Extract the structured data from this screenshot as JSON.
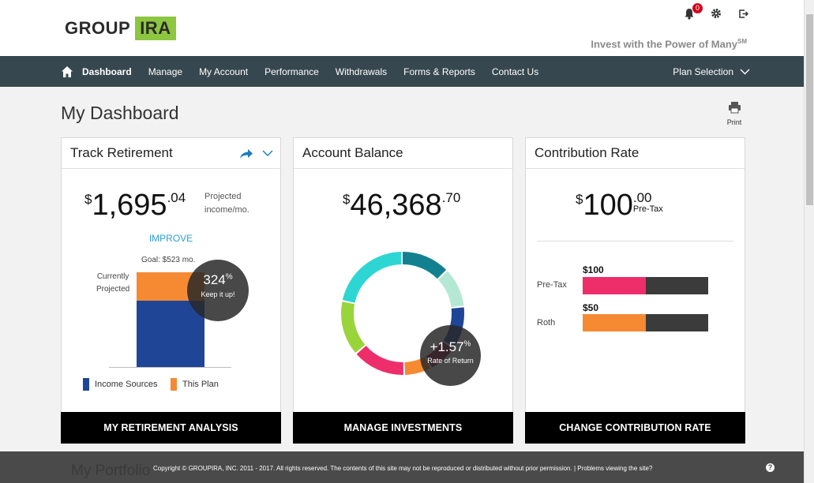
{
  "header": {
    "logo_part1": "GROUP",
    "logo_part2": "IRA",
    "notification_count": "0",
    "tagline": "Invest with the Power of Many",
    "tagline_sup": "SM",
    "icons": [
      "bell-icon",
      "gear-icon",
      "logout-icon"
    ]
  },
  "nav": {
    "items": [
      "Dashboard",
      "Manage",
      "My Account",
      "Performance",
      "Withdrawals",
      "Forms & Reports",
      "Contact Us"
    ],
    "plan_selection": "Plan Selection"
  },
  "page": {
    "title": "My Dashboard",
    "print_label": "Print"
  },
  "track": {
    "title": "Track Retirement",
    "currency": "$",
    "amount": "1,695",
    "cents": ".04",
    "projected_line1": "Projected",
    "projected_line2": "income/mo.",
    "improve": "IMPROVE",
    "goal": "Goal: $523 mo.",
    "label_line1": "Currently",
    "label_line2": "Projected",
    "pct_value": "324",
    "pct_sign": "%",
    "pct_caption": "Keep it up!",
    "legend": [
      {
        "label": "Income Sources",
        "color": "#1f4597"
      },
      {
        "label": "This Plan",
        "color": "#f58a33"
      }
    ],
    "footer": "MY RETIREMENT ANALYSIS"
  },
  "balance": {
    "title": "Account Balance",
    "currency": "$",
    "amount": "46,368",
    "cents": ".70",
    "return_value": "+1.57",
    "return_sign": "%",
    "return_caption": "Rate of Return",
    "footer": "MANAGE INVESTMENTS"
  },
  "contribution": {
    "title": "Contribution Rate",
    "currency": "$",
    "amount": "100",
    "cents": ".00",
    "type_label": "Pre-Tax",
    "rows": [
      {
        "label": "Pre-Tax",
        "amount": "$100",
        "color": "#ee2d6b",
        "fraction": 0.5
      },
      {
        "label": "Roth",
        "amount": "$50",
        "color": "#f58a33",
        "fraction": 0.5
      }
    ],
    "footer": "CHANGE CONTRIBUTION RATE"
  },
  "footer": {
    "ghost_heading": "My Portfolio",
    "copyright": "Copyright © GROUPIRA, INC. 2011 - 2017. All rights reserved. The contents of this site may not be reproduced or distributed without prior permission. | Problems viewing the site?",
    "help": "?"
  },
  "colors": {
    "nav_bg": "#37474f",
    "accent_link": "#2a9fd6",
    "logo_green": "#8dc63f"
  }
}
